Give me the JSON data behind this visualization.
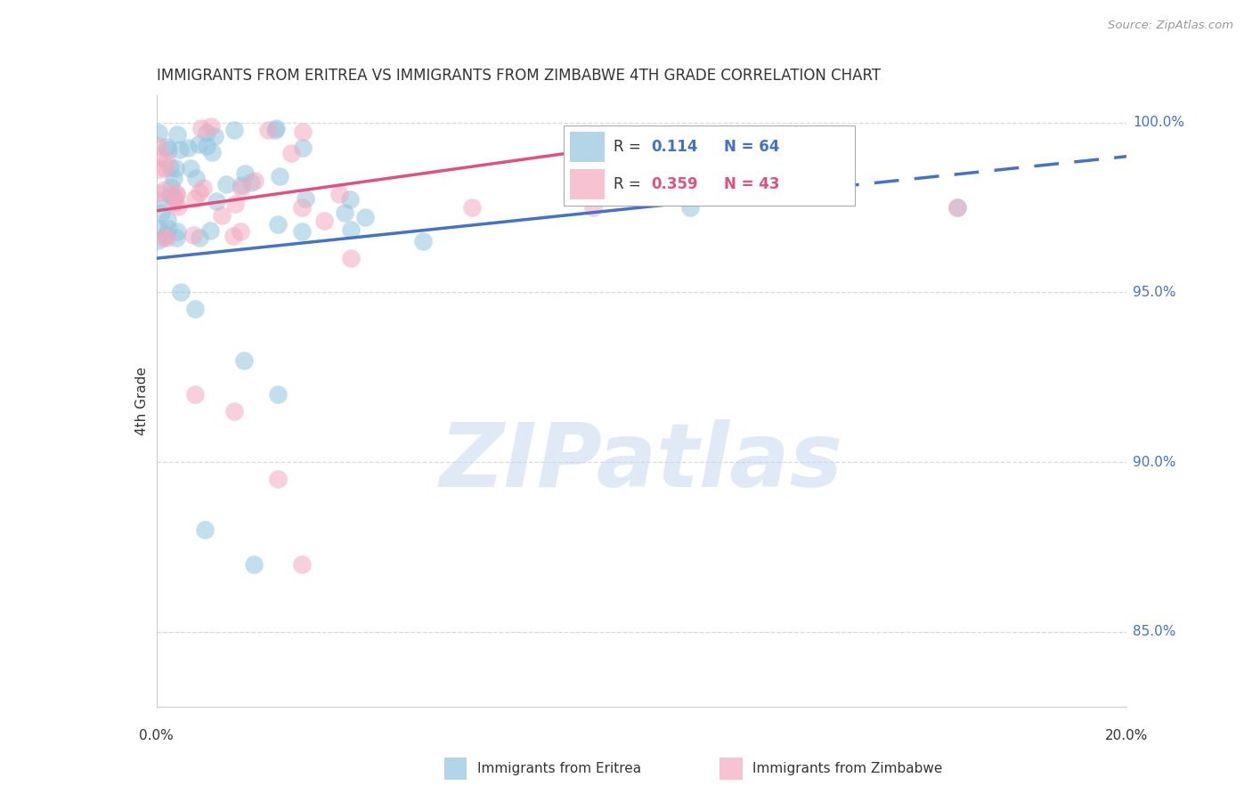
{
  "title": "IMMIGRANTS FROM ERITREA VS IMMIGRANTS FROM ZIMBABWE 4TH GRADE CORRELATION CHART",
  "source": "Source: ZipAtlas.com",
  "ylabel": "4th Grade",
  "xmin": 0.0,
  "xmax": 0.2,
  "ymin": 0.828,
  "ymax": 1.008,
  "eritrea_color": "#92c5de",
  "zimbabwe_color": "#f4a9c0",
  "eritrea_line_color": "#4472c4",
  "zimbabwe_line_color": "#e05080",
  "eritrea_R": "0.114",
  "eritrea_N": "64",
  "zimbabwe_R": "0.359",
  "zimbabwe_N": "43",
  "right_label_color": "#4472c4",
  "grid_color": "#d0d0d0",
  "background_color": "#ffffff",
  "watermark_color": "#c8d8f0",
  "title_color": "#333333",
  "source_color": "#999999",
  "axis_label_color": "#333333"
}
